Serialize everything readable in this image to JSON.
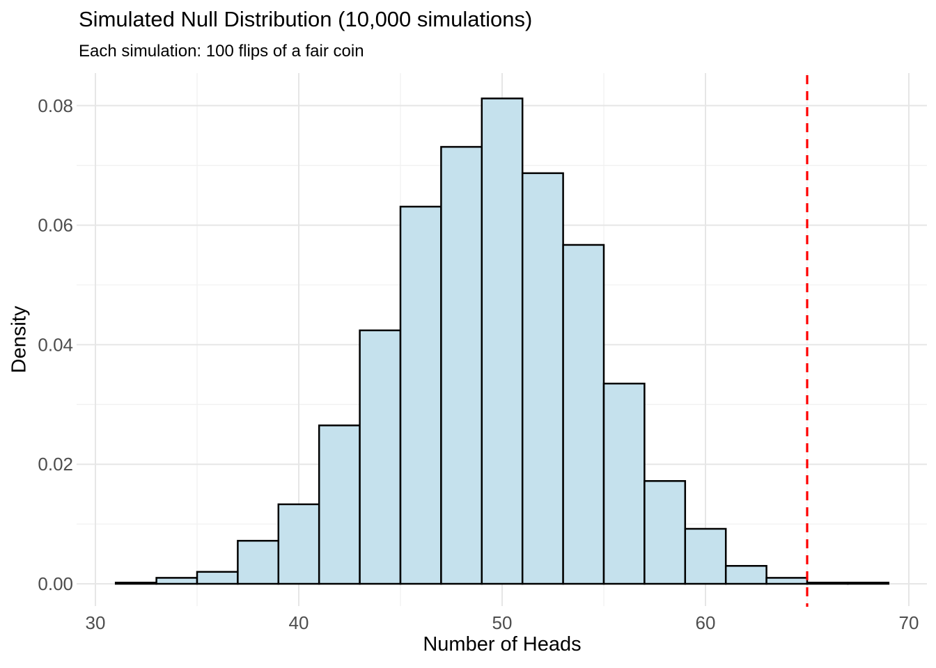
{
  "chart_data": {
    "type": "bar",
    "subtype": "histogram",
    "title": "Simulated Null Distribution (10,000 simulations)",
    "subtitle": "Each simulation: 100 flips of a fair coin",
    "xlabel": "Number of Heads",
    "ylabel": "Density",
    "bin_start": 31,
    "bin_width": 2,
    "bin_edges": [
      31,
      33,
      35,
      37,
      39,
      41,
      43,
      45,
      47,
      49,
      51,
      53,
      55,
      57,
      59,
      61,
      63,
      65,
      67,
      69
    ],
    "densities": [
      0.0002,
      0.001,
      0.002,
      0.0072,
      0.0133,
      0.0265,
      0.0424,
      0.0631,
      0.0731,
      0.0812,
      0.0687,
      0.0567,
      0.0335,
      0.0172,
      0.0092,
      0.003,
      0.001,
      0.0002,
      0.0002
    ],
    "x_ticks": {
      "values": [
        30,
        40,
        50,
        60,
        70
      ],
      "labels": [
        "30",
        "40",
        "50",
        "60",
        "70"
      ]
    },
    "y_ticks": {
      "values": [
        0,
        0.02,
        0.04,
        0.06,
        0.08
      ],
      "labels": [
        "0.00",
        "0.02",
        "0.04",
        "0.06",
        "0.08"
      ]
    },
    "x_minor_gridlines": [
      35,
      45,
      55,
      65
    ],
    "y_minor_gridlines": [
      0.01,
      0.03,
      0.05,
      0.07
    ],
    "xlim": [
      30,
      70
    ],
    "ylim": [
      0,
      0.0832
    ],
    "grid": "major+minor",
    "legend": false,
    "reference_line": {
      "orientation": "vertical",
      "x": 65,
      "style": "dashed",
      "color": "#ff0000"
    },
    "colors": {
      "background": "#ffffff",
      "bar_fill": "#c5e1ed",
      "bar_stroke": "#000000",
      "grid_major": "#e6e6e6",
      "grid_minor": "#f1f1f1",
      "tick_label": "#4d4d4d",
      "axis_title": "#000000",
      "title": "#000000",
      "reference_line": "#ff0000"
    }
  }
}
